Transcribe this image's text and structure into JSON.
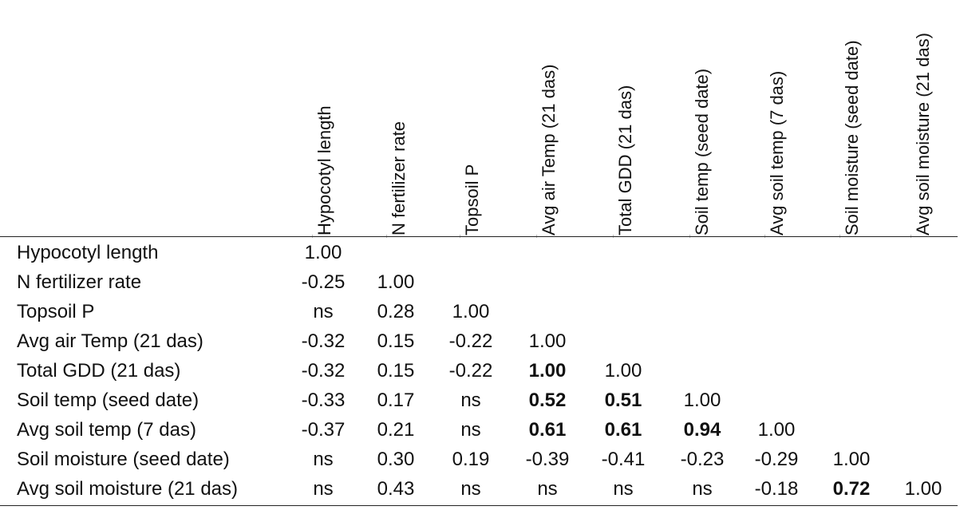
{
  "columns": [
    "Hypocotyl length",
    "N fertilizer rate",
    "Topsoil P",
    "Avg air Temp (21 das)",
    "Total GDD (21 das)",
    "Soil temp (seed date)",
    "Avg soil temp (7 das)",
    "Soil moisture (seed date)",
    "Avg soil moisture (21 das)"
  ],
  "rows": [
    {
      "label": "Hypocotyl length",
      "cells": [
        {
          "value": "1.00",
          "bold": false
        }
      ]
    },
    {
      "label": "N fertilizer rate",
      "cells": [
        {
          "value": "-0.25",
          "bold": false
        },
        {
          "value": "1.00",
          "bold": false
        }
      ]
    },
    {
      "label": "Topsoil P",
      "cells": [
        {
          "value": "ns",
          "bold": false
        },
        {
          "value": "0.28",
          "bold": false
        },
        {
          "value": "1.00",
          "bold": false
        }
      ]
    },
    {
      "label": "Avg air Temp (21 das)",
      "cells": [
        {
          "value": "-0.32",
          "bold": false
        },
        {
          "value": "0.15",
          "bold": false
        },
        {
          "value": "-0.22",
          "bold": false
        },
        {
          "value": "1.00",
          "bold": false
        }
      ]
    },
    {
      "label": "Total GDD (21 das)",
      "cells": [
        {
          "value": "-0.32",
          "bold": false
        },
        {
          "value": "0.15",
          "bold": false
        },
        {
          "value": "-0.22",
          "bold": false
        },
        {
          "value": "1.00",
          "bold": true
        },
        {
          "value": "1.00",
          "bold": false
        }
      ]
    },
    {
      "label": "Soil temp (seed date)",
      "cells": [
        {
          "value": "-0.33",
          "bold": false
        },
        {
          "value": "0.17",
          "bold": false
        },
        {
          "value": "ns",
          "bold": false
        },
        {
          "value": "0.52",
          "bold": true
        },
        {
          "value": "0.51",
          "bold": true
        },
        {
          "value": "1.00",
          "bold": false
        }
      ]
    },
    {
      "label": "Avg soil temp (7 das)",
      "cells": [
        {
          "value": "-0.37",
          "bold": false
        },
        {
          "value": "0.21",
          "bold": false
        },
        {
          "value": "ns",
          "bold": false
        },
        {
          "value": "0.61",
          "bold": true
        },
        {
          "value": "0.61",
          "bold": true
        },
        {
          "value": "0.94",
          "bold": true
        },
        {
          "value": "1.00",
          "bold": false
        }
      ]
    },
    {
      "label": "Soil moisture (seed date)",
      "cells": [
        {
          "value": "ns",
          "bold": false
        },
        {
          "value": "0.30",
          "bold": false
        },
        {
          "value": "0.19",
          "bold": false
        },
        {
          "value": "-0.39",
          "bold": false
        },
        {
          "value": "-0.41",
          "bold": false
        },
        {
          "value": "-0.23",
          "bold": false
        },
        {
          "value": "-0.29",
          "bold": false
        },
        {
          "value": "1.00",
          "bold": false
        }
      ]
    },
    {
      "label": "Avg soil moisture (21 das)",
      "cells": [
        {
          "value": "ns",
          "bold": false
        },
        {
          "value": "0.43",
          "bold": false
        },
        {
          "value": "ns",
          "bold": false
        },
        {
          "value": "ns",
          "bold": false
        },
        {
          "value": "ns",
          "bold": false
        },
        {
          "value": "ns",
          "bold": false
        },
        {
          "value": "-0.18",
          "bold": false
        },
        {
          "value": "0.72",
          "bold": true
        },
        {
          "value": "1.00",
          "bold": false
        }
      ]
    }
  ]
}
